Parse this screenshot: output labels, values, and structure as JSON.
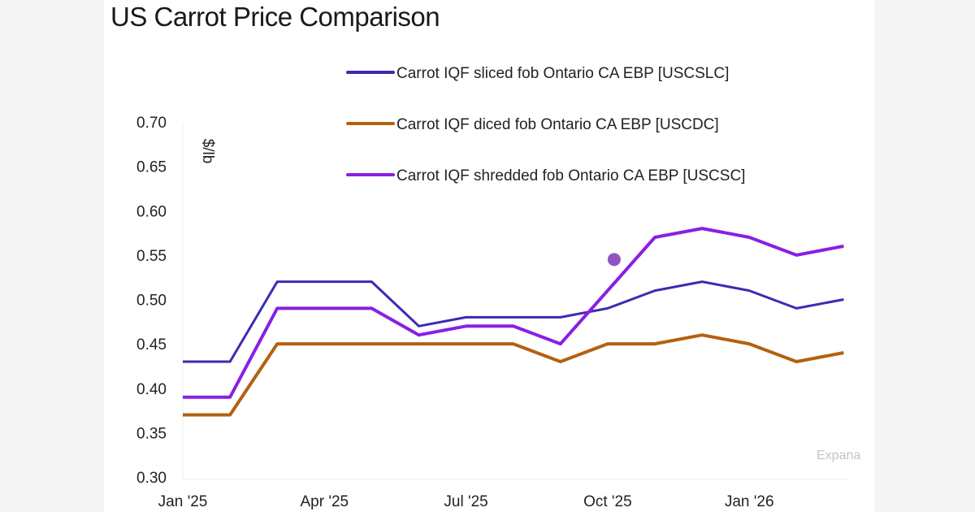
{
  "chart_data": {
    "type": "line",
    "title": "US Carrot Price Comparison",
    "ylabel": "$/lb",
    "xlabel": "",
    "ylim": [
      0.3,
      0.7
    ],
    "yticks": [
      "0.30",
      "0.35",
      "0.40",
      "0.45",
      "0.50",
      "0.55",
      "0.60",
      "0.65",
      "0.70"
    ],
    "xticks": [
      "Jan '25",
      "Apr '25",
      "Jul '25",
      "Oct '25",
      "Jan '26"
    ],
    "x": [
      "2025-01",
      "2025-02",
      "2025-03",
      "2025-04",
      "2025-05",
      "2025-06",
      "2025-07",
      "2025-08",
      "2025-09",
      "2025-10",
      "2025-11",
      "2025-12",
      "2026-01",
      "2026-02",
      "2026-03"
    ],
    "series": [
      {
        "name": "Carrot IQF sliced fob Ontario CA EBP [USCSLC]",
        "color": "#3b2bb3",
        "values": [
          0.43,
          0.43,
          0.52,
          0.52,
          0.52,
          0.47,
          0.48,
          0.48,
          0.48,
          0.49,
          0.51,
          0.52,
          0.51,
          0.49,
          0.5
        ]
      },
      {
        "name": "Carrot IQF diced fob Ontario CA EBP [USCDC]",
        "color": "#b5600f",
        "values": [
          0.37,
          0.37,
          0.45,
          0.45,
          0.45,
          0.45,
          0.45,
          0.45,
          0.43,
          0.45,
          0.45,
          0.46,
          0.45,
          0.43,
          0.44
        ]
      },
      {
        "name": "Carrot IQF shredded fob Ontario CA EBP [USCSC]",
        "color": "#8a1fe3",
        "values": [
          0.39,
          0.39,
          0.49,
          0.49,
          0.49,
          0.46,
          0.47,
          0.47,
          0.45,
          0.51,
          0.57,
          0.58,
          0.57,
          0.55,
          0.56
        ]
      }
    ],
    "marker": {
      "x": "2025-10",
      "y": 0.545,
      "color": "#9155c0"
    },
    "legend": "top",
    "grid": false,
    "watermark": "Expana"
  }
}
